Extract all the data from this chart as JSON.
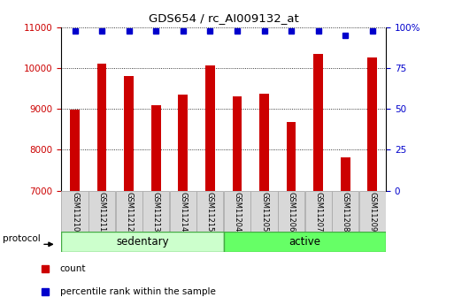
{
  "title": "GDS654 / rc_AI009132_at",
  "samples": [
    "GSM11210",
    "GSM11211",
    "GSM11212",
    "GSM11213",
    "GSM11214",
    "GSM11215",
    "GSM11204",
    "GSM11205",
    "GSM11206",
    "GSM11207",
    "GSM11208",
    "GSM11209"
  ],
  "counts": [
    8980,
    10120,
    9800,
    9100,
    9350,
    10080,
    9320,
    9380,
    8680,
    10360,
    7820,
    10260
  ],
  "percentile_ranks": [
    98,
    98,
    98,
    98,
    98,
    98,
    98,
    98,
    98,
    98,
    95,
    98
  ],
  "groups": [
    {
      "label": "sedentary",
      "start": 0,
      "end": 6
    },
    {
      "label": "active",
      "start": 6,
      "end": 12
    }
  ],
  "protocol_label": "protocol",
  "ylim": [
    7000,
    11000
  ],
  "yticks": [
    7000,
    8000,
    9000,
    10000,
    11000
  ],
  "y2lim": [
    0,
    100
  ],
  "y2ticks": [
    0,
    25,
    50,
    75,
    100
  ],
  "y2ticklabels": [
    "0",
    "25",
    "50",
    "75",
    "100%"
  ],
  "bar_color": "#cc0000",
  "dot_color": "#0000cc",
  "group0_color": "#ccffcc",
  "group1_color": "#66ff66",
  "group_border_color": "#44aa44",
  "tick_label_color": "#cc0000",
  "y2_label_color": "#0000cc",
  "legend_count_color": "#cc0000",
  "legend_rank_color": "#0000cc",
  "background_color": "#ffffff",
  "title_color": "#000000",
  "grid_color": "#000000",
  "bar_width": 0.35
}
